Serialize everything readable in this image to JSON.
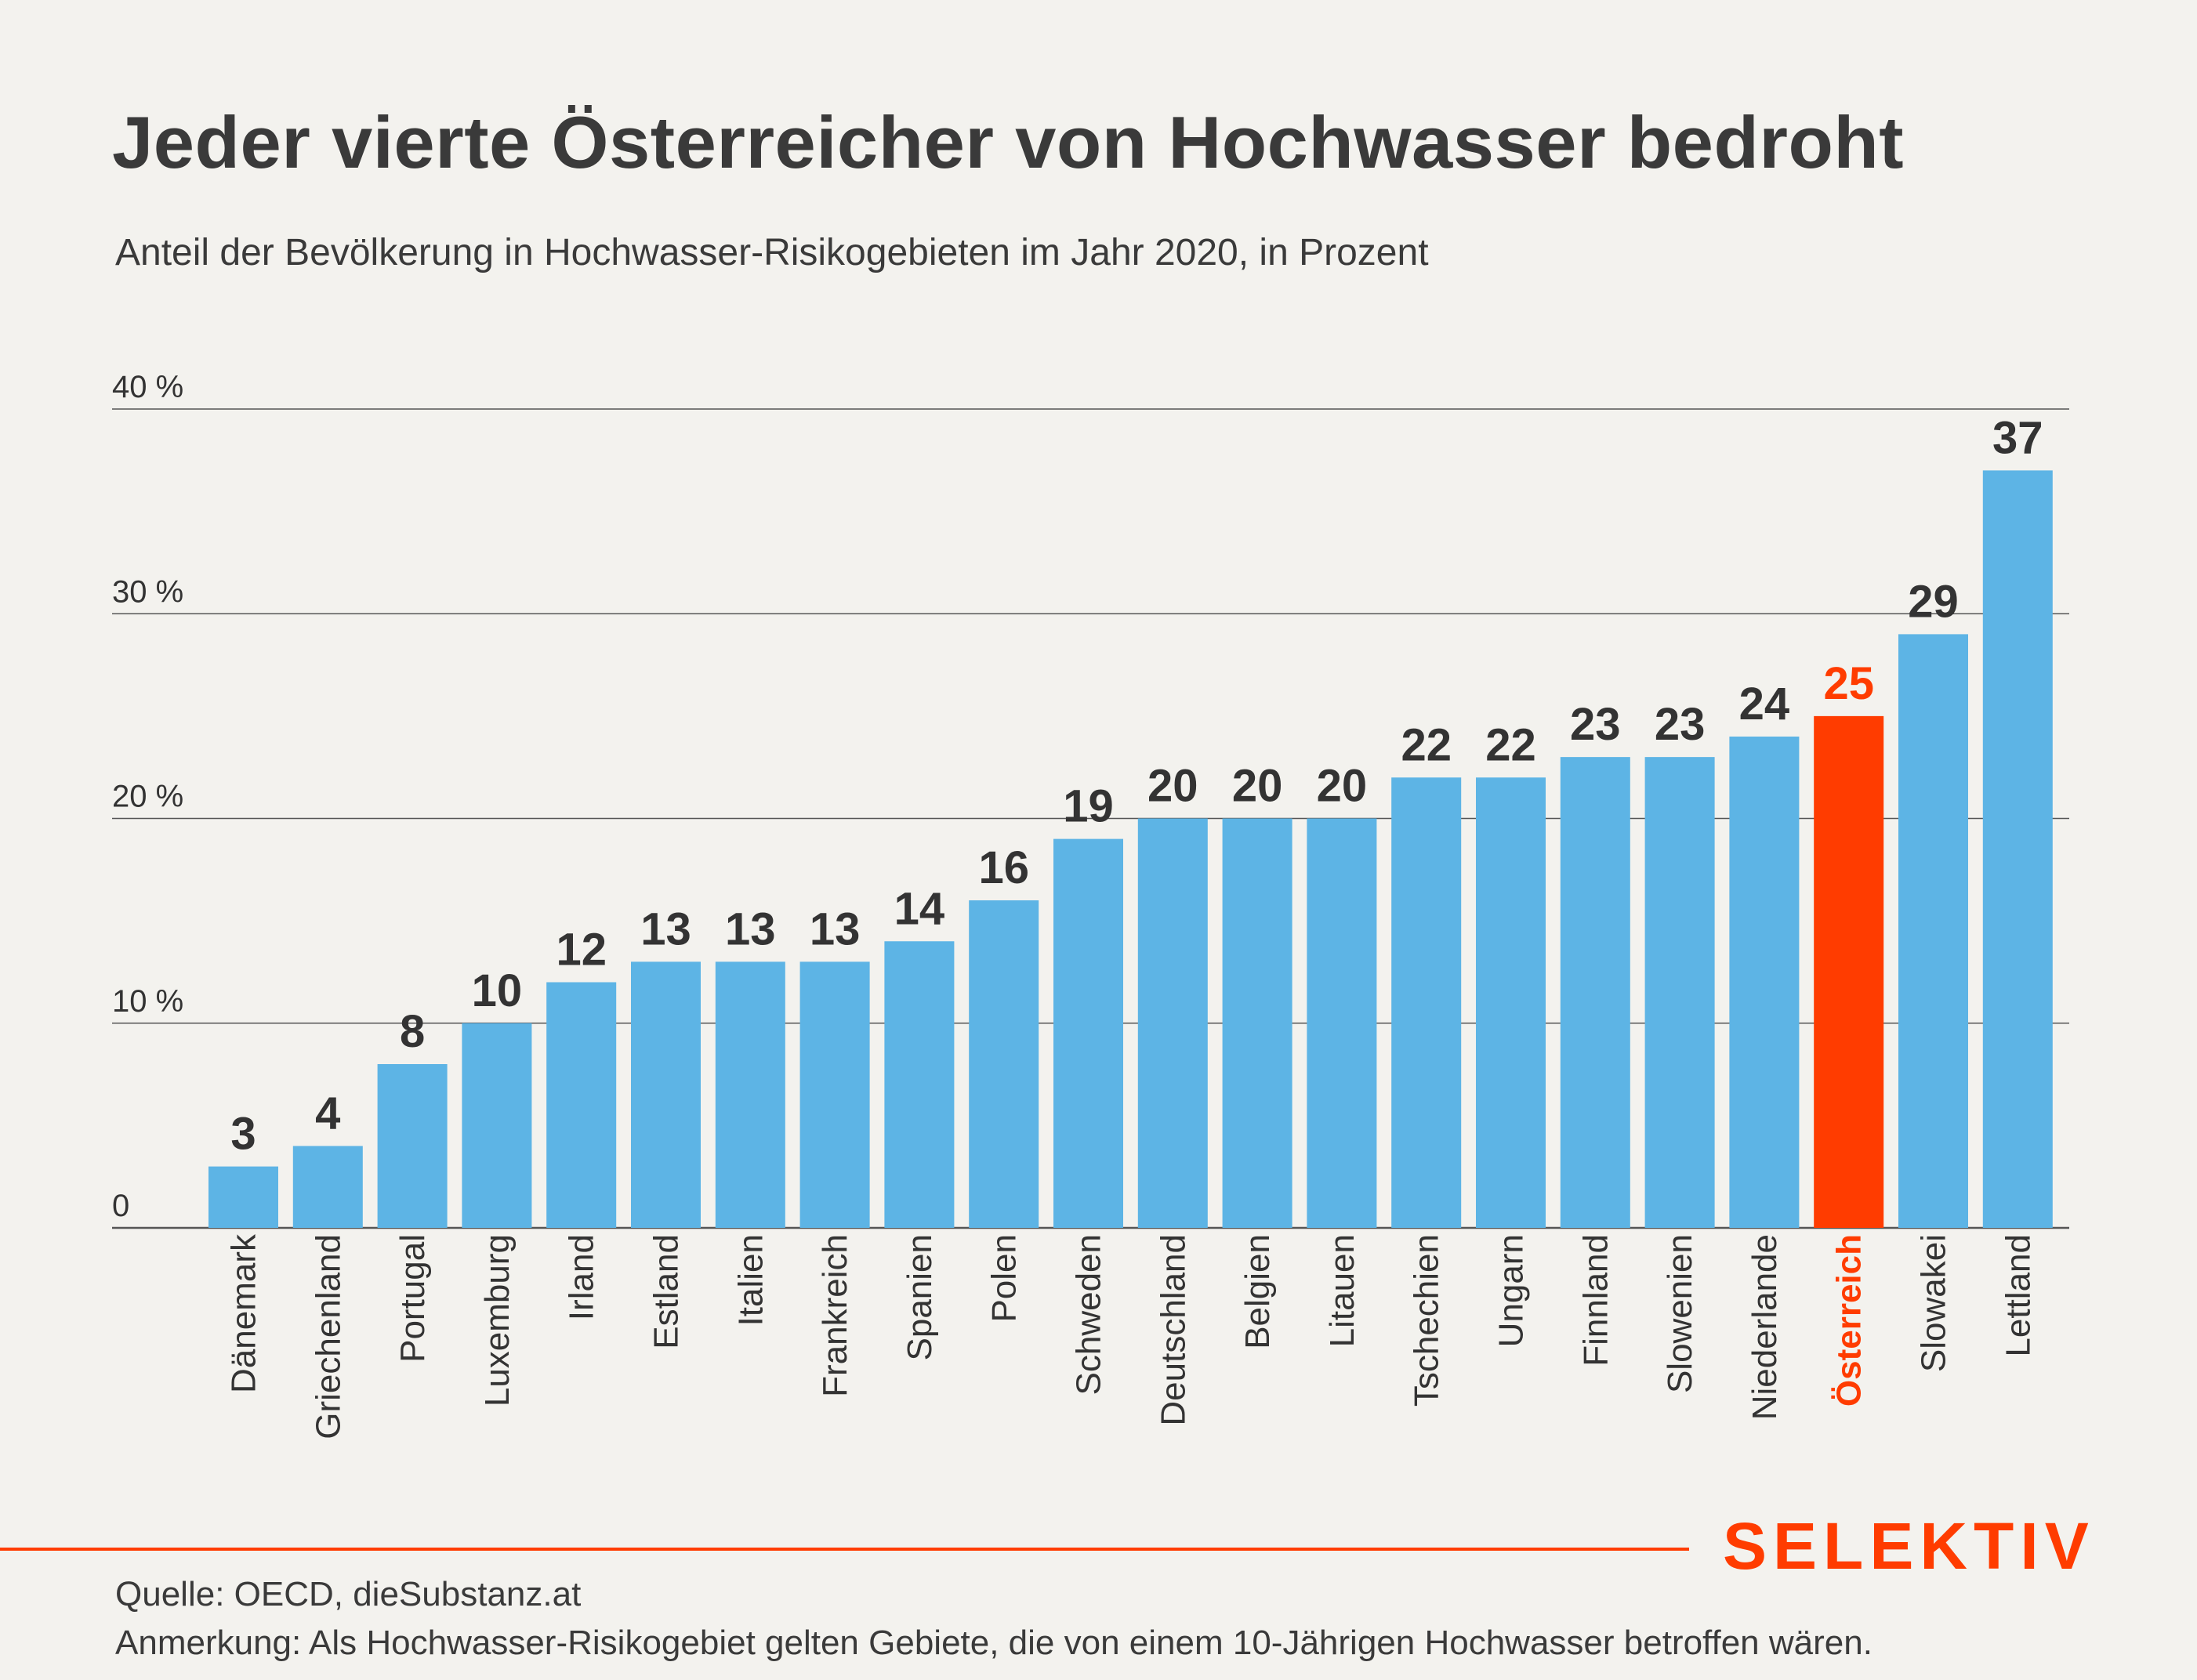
{
  "title": "Jeder vierte Österreicher von Hochwasser bedroht",
  "subtitle": "Anteil der Bevölkerung in Hochwasser-Risikogebieten im Jahr 2020, in Prozent",
  "colors": {
    "bar": "#5db4e5",
    "highlight": "#ff3c00",
    "text": "#333333",
    "grid": "#555555"
  },
  "chart_data": {
    "type": "bar",
    "categories": [
      "Dänemark",
      "Griechenland",
      "Portugal",
      "Luxemburg",
      "Irland",
      "Estland",
      "Italien",
      "Frankreich",
      "Spanien",
      "Polen",
      "Schweden",
      "Deutschland",
      "Belgien",
      "Litauen",
      "Tschechien",
      "Ungarn",
      "Finnland",
      "Slowenien",
      "Niederlande",
      "Österreich",
      "Slowakei",
      "Lettland"
    ],
    "values": [
      3,
      4,
      8,
      10,
      12,
      13,
      13,
      13,
      14,
      16,
      19,
      20,
      20,
      20,
      22,
      22,
      23,
      23,
      24,
      25,
      29,
      37
    ],
    "highlight": "Österreich",
    "ylim": [
      0,
      40
    ],
    "yticks": [
      0,
      10,
      20,
      30,
      40
    ],
    "ytick_labels": [
      "0",
      "10 %",
      "20 %",
      "30 %",
      "40 %"
    ],
    "grid": true,
    "data_labels": true
  },
  "brand": "SELEKTIV",
  "source": "Quelle: OECD, dieSubstanz.at",
  "note": "Anmerkung: Als Hochwasser-Risikogebiet gelten Gebiete, die von einem 10-Jährigen Hochwasser betroffen wären."
}
